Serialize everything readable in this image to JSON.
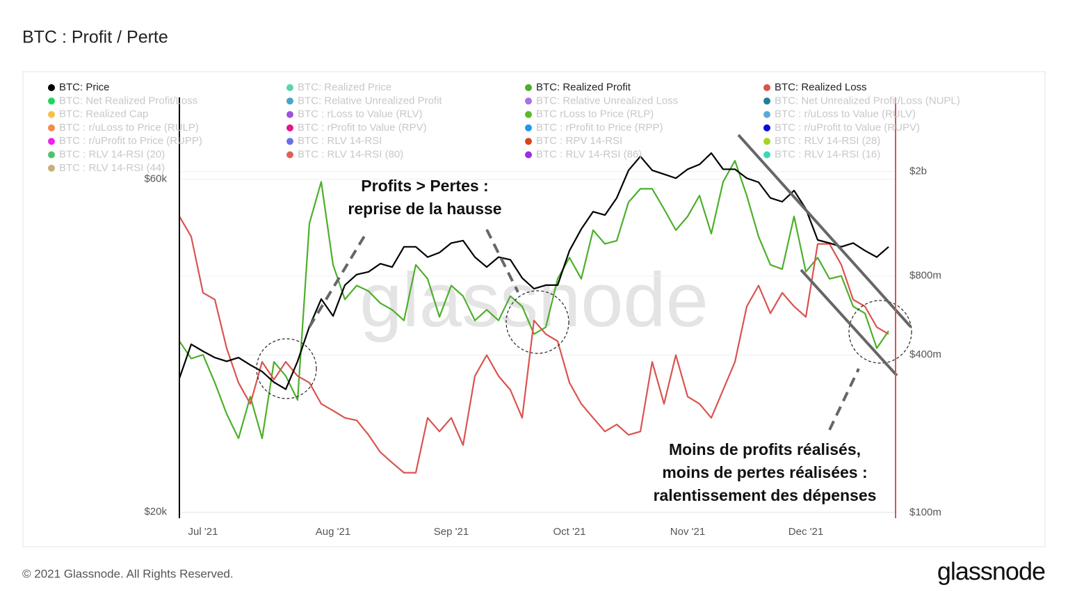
{
  "chart_data": {
    "type": "line",
    "title": "BTC : Profit / Perte",
    "watermark": "glassnode",
    "footer": "© 2021 Glassnode. All Rights Reserved.",
    "logo": "glassnode",
    "annotations": [
      [
        "Profits > Pertes  :",
        "reprise de la hausse"
      ],
      [
        "Moins de profits réalisés,",
        "moins de pertes réalisées :",
        "ralentissement des dépenses"
      ]
    ],
    "categories": [
      null,
      null,
      "Jul '21",
      null,
      null,
      null,
      null,
      null,
      null,
      null,
      null,
      null,
      null,
      "Aug '21",
      null,
      null,
      null,
      null,
      null,
      null,
      null,
      null,
      null,
      "Sep '21",
      null,
      null,
      null,
      null,
      null,
      null,
      null,
      null,
      null,
      "Oct '21",
      null,
      null,
      null,
      null,
      null,
      null,
      null,
      null,
      null,
      "Nov '21",
      null,
      null,
      null,
      null,
      null,
      null,
      null,
      null,
      null,
      "Dec '21",
      null,
      null,
      null,
      null,
      null,
      null,
      null
    ],
    "series": [
      {
        "name": "BTC: Price",
        "color": "#000000",
        "axis": "y",
        "values": [
          31100,
          34800,
          34000,
          33300,
          32900,
          33300,
          32500,
          31800,
          30700,
          30000,
          32900,
          36900,
          40400,
          38200,
          42300,
          43800,
          44200,
          45400,
          44900,
          48000,
          48000,
          46400,
          47100,
          48600,
          49000,
          46400,
          44900,
          46400,
          46000,
          43300,
          41800,
          42300,
          42300,
          47400,
          50900,
          53900,
          53300,
          56400,
          61800,
          64700,
          61800,
          61000,
          60200,
          62000,
          63000,
          65400,
          62000,
          62000,
          60200,
          59400,
          56400,
          55700,
          57800,
          54400,
          49100,
          48600,
          48000,
          48600,
          47400,
          46400,
          48000
        ]
      },
      {
        "name": "BTC: Realized Profit",
        "color": "#4caf2a",
        "axis": "y2",
        "values": [
          451000000,
          387000000,
          400000000,
          313000000,
          238000000,
          192000000,
          277000000,
          192000000,
          376000000,
          332000000,
          269000000,
          1270000000,
          1830000000,
          882000000,
          651000000,
          735000000,
          700000000,
          630000000,
          594000000,
          541000000,
          882000000,
          780000000,
          558000000,
          735000000,
          670000000,
          541000000,
          594000000,
          541000000,
          670000000,
          612000000,
          480000000,
          510000000,
          780000000,
          940000000,
          780000000,
          1196000000,
          1060000000,
          1090000000,
          1530000000,
          1720000000,
          1720000000,
          1440000000,
          1196000000,
          1350000000,
          1620000000,
          1160000000,
          1830000000,
          2200000000,
          1620000000,
          1130000000,
          882000000,
          850000000,
          1350000000,
          830000000,
          940000000,
          780000000,
          800000000,
          612000000,
          576000000,
          424000000,
          494000000
        ]
      },
      {
        "name": "BTC: Realized Loss",
        "color": "#d9534f",
        "axis": "y2",
        "values": [
          1350000000,
          1130000000,
          690000000,
          650000000,
          424000000,
          313000000,
          260000000,
          376000000,
          322000000,
          376000000,
          332000000,
          313000000,
          260000000,
          245000000,
          230000000,
          225000000,
          198000000,
          170000000,
          155000000,
          142000000,
          142000000,
          230000000,
          204000000,
          230000000,
          181000000,
          332000000,
          399000000,
          332000000,
          294000000,
          230000000,
          541000000,
          480000000,
          451000000,
          313000000,
          260000000,
          230000000,
          204000000,
          217000000,
          198000000,
          204000000,
          376000000,
          260000000,
          399000000,
          277000000,
          260000000,
          230000000,
          294000000,
          376000000,
          612000000,
          735000000,
          576000000,
          690000000,
          612000000,
          558000000,
          1060000000,
          1060000000,
          882000000,
          650000000,
          612000000,
          510000000,
          480000000
        ]
      }
    ],
    "inactive_legend": [
      {
        "name": "BTC: Realized Price",
        "color": "#5fd3a8"
      },
      {
        "name": "BTC: Net Realized Profit/Loss",
        "color": "#1ed760"
      },
      {
        "name": "BTC: Relative Unrealized Profit",
        "color": "#4aa3c8"
      },
      {
        "name": "BTC: Relative Unrealized Loss",
        "color": "#a970e8"
      },
      {
        "name": "BTC: Net Unrealized Profit/Loss (NUPL)",
        "color": "#1f7f9a"
      },
      {
        "name": "BTC: Realized Cap",
        "color": "#f5c04a"
      },
      {
        "name": "BTC : rLoss to Value (RLV)",
        "color": "#9a55e0"
      },
      {
        "name": "BTC rLoss to Price (RLP)",
        "color": "#5cb82e"
      },
      {
        "name": "BTC : r/uLoss to Value (RULV)",
        "color": "#5aa9d6"
      },
      {
        "name": "BTC : r/uLoss to Price (RULP)",
        "color": "#f58a4a"
      },
      {
        "name": "BTC : rProfit to Value (RPV)",
        "color": "#e8178a"
      },
      {
        "name": "BTC : rProfit to Price (RPP)",
        "color": "#2196f3"
      },
      {
        "name": "BTC : r/uProfit to Value (RUPV)",
        "color": "#0a0adf"
      },
      {
        "name": "BTC : r/uProfit to Price (RUPP)",
        "color": "#f020f0"
      },
      {
        "name": "BTC : RLV 14-RSI",
        "color": "#6b6fe0"
      },
      {
        "name": "BTC : RPV 14-RSI",
        "color": "#d8451a"
      },
      {
        "name": "BTC : RLV 14-RSI (28)",
        "color": "#a8d41e"
      },
      {
        "name": "BTC : RLV 14-RSI (20)",
        "color": "#4cc46a"
      },
      {
        "name": "BTC : RLV 14-RSI (80)",
        "color": "#e0605a"
      },
      {
        "name": "BTC : RLV 14-RSI (86)",
        "color": "#9b2ce8"
      },
      {
        "name": "BTC : RLV 14-RSI (16)",
        "color": "#3fd8b0"
      },
      {
        "name": "BTC : RLV 14-RSI (44)",
        "color": "#c8b07a"
      }
    ],
    "log": true,
    "grid": true,
    "ylim": [
      19600,
      78600
    ],
    "yticks": [
      {
        "value": 20000,
        "label": "$20k"
      },
      {
        "value": 60000,
        "label": "$60k"
      }
    ],
    "y2lim": [
      95200000,
      3840000000
    ],
    "y2ticks": [
      {
        "value": 100000000,
        "label": "$100m"
      },
      {
        "value": 400000000,
        "label": "$400m"
      },
      {
        "value": 800000000,
        "label": "$800m"
      },
      {
        "value": 2000000000,
        "label": "$2b"
      }
    ]
  }
}
